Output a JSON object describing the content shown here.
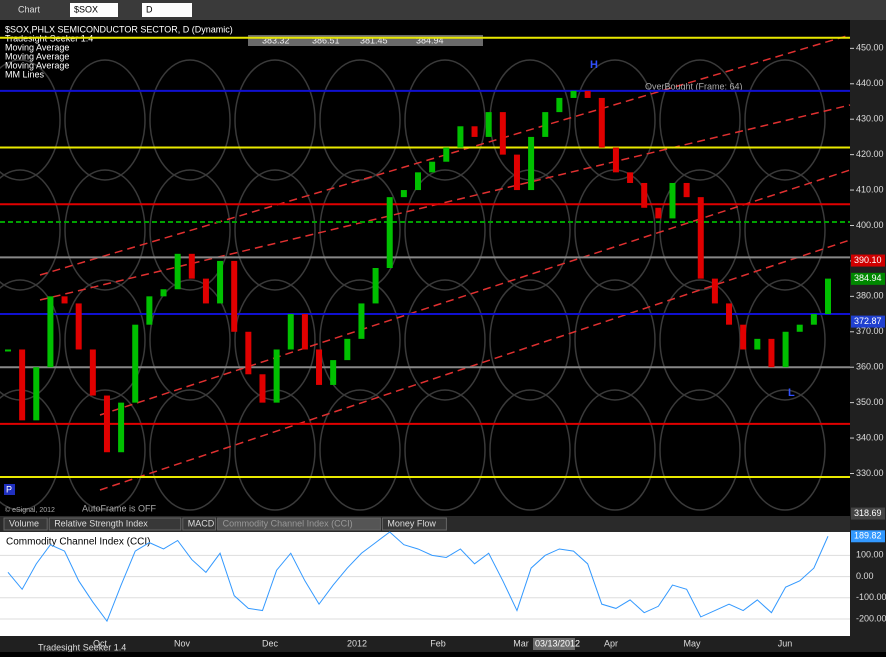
{
  "toolbar": {
    "title": "Chart",
    "symbol": "$SOX",
    "interval": "D"
  },
  "quote": {
    "open": "383.32",
    "high": "386.51",
    "low": "381.45",
    "last": "384.94"
  },
  "legend": [
    "$SOX,PHLX SEMICONDUCTOR SECTOR, D (Dynamic)",
    "Tradesight Seeker 1.4",
    "Moving Average",
    "Moving Average",
    "Moving Average",
    "MM Lines"
  ],
  "annotations": {
    "overbought": "OverBought (Frame: 64)",
    "autoframe": "AutoFrame is OFF",
    "copyright": "© eSignal, 2012",
    "high_marker": "H",
    "low_marker": "L",
    "p_marker": "P"
  },
  "tabs": [
    "Volume",
    "Relative Strength Index",
    "MACD",
    "Commodity Channel Index (CCI)",
    "Money Flow"
  ],
  "cursor_date": "03/13/2012",
  "footer": "Tradesight Seeker 1.4",
  "chart_data": [
    {
      "type": "bar",
      "title": "$SOX",
      "values": [
        365,
        345,
        360,
        380,
        378,
        365,
        352,
        336,
        350,
        372,
        380,
        382,
        392,
        385,
        378,
        390,
        370,
        358,
        350,
        365,
        375,
        365,
        355,
        362,
        368,
        378,
        388,
        408,
        410,
        415,
        418,
        422,
        428,
        425,
        432,
        420,
        410,
        425,
        432,
        436,
        438,
        436,
        422,
        415,
        412,
        405,
        402,
        412,
        408,
        385,
        378,
        372,
        365,
        368,
        360,
        370,
        372,
        375,
        385
      ],
      "up_color": "#00c000",
      "down_color": "#e00000",
      "ylim": [
        318,
        458
      ],
      "yticks": [
        {
          "value": 330,
          "label": "330.00"
        },
        {
          "value": 340,
          "label": "340.00"
        },
        {
          "value": 350,
          "label": "350.00"
        },
        {
          "value": 360,
          "label": "360.00"
        },
        {
          "value": 370,
          "label": "370.00"
        },
        {
          "value": 380,
          "label": "380.00"
        },
        {
          "value": 390,
          "label": "390.00"
        },
        {
          "value": 400,
          "label": "400.00"
        },
        {
          "value": 410,
          "label": "410.00"
        },
        {
          "value": 420,
          "label": "420.00"
        },
        {
          "value": 430,
          "label": "430.00"
        },
        {
          "value": 440,
          "label": "440.00"
        },
        {
          "value": 450,
          "label": "450.00"
        }
      ],
      "price_tags": [
        {
          "value": 390.1,
          "label": "390.10",
          "color": "#d00000"
        },
        {
          "value": 384.94,
          "label": "384.94",
          "color": "#008800"
        },
        {
          "value": 372.87,
          "label": "372.87",
          "color": "#2040d0"
        },
        {
          "value": 318.69,
          "label": "318.69",
          "color": "#444444"
        }
      ],
      "levels": [
        {
          "value": 453,
          "color": "#e8e800"
        },
        {
          "value": 422,
          "color": "#e8e800"
        },
        {
          "value": 329,
          "color": "#e8e800"
        },
        {
          "value": 438,
          "color": "#1010d0"
        },
        {
          "value": 375,
          "color": "#1010d0"
        },
        {
          "value": 406,
          "color": "#e00000"
        },
        {
          "value": 344,
          "color": "#e00000"
        },
        {
          "value": 401,
          "color": "#00a000",
          "style": "dashed"
        },
        {
          "value": 391,
          "color": "#888888"
        },
        {
          "value": 360,
          "color": "#888888"
        }
      ],
      "months": [
        "Oct",
        "Nov",
        "Dec",
        "2012",
        "Feb",
        "Mar",
        "Apr",
        "May",
        "Jun"
      ]
    },
    {
      "type": "line",
      "title": "Commodity Channel Index (CCI)",
      "color": "#3399ff",
      "values": [
        20,
        -60,
        60,
        150,
        120,
        -20,
        -120,
        -210,
        -40,
        120,
        160,
        130,
        170,
        80,
        20,
        110,
        -90,
        -150,
        -160,
        30,
        110,
        -20,
        -130,
        -40,
        40,
        110,
        160,
        210,
        150,
        130,
        100,
        90,
        130,
        60,
        110,
        -20,
        -160,
        40,
        100,
        130,
        120,
        60,
        -130,
        -150,
        -110,
        -170,
        -140,
        -40,
        -60,
        -190,
        -160,
        -130,
        -160,
        -110,
        -170,
        -50,
        -20,
        40,
        190
      ],
      "ylim": [
        -280,
        210
      ],
      "yticks": [
        {
          "value": 100,
          "label": "100.00"
        },
        {
          "value": 0,
          "label": "0.00"
        },
        {
          "value": -100,
          "label": "-100.00"
        },
        {
          "value": -200,
          "label": "-200.00"
        }
      ],
      "last_tag": {
        "value": 189.82,
        "label": "189.82"
      }
    }
  ]
}
